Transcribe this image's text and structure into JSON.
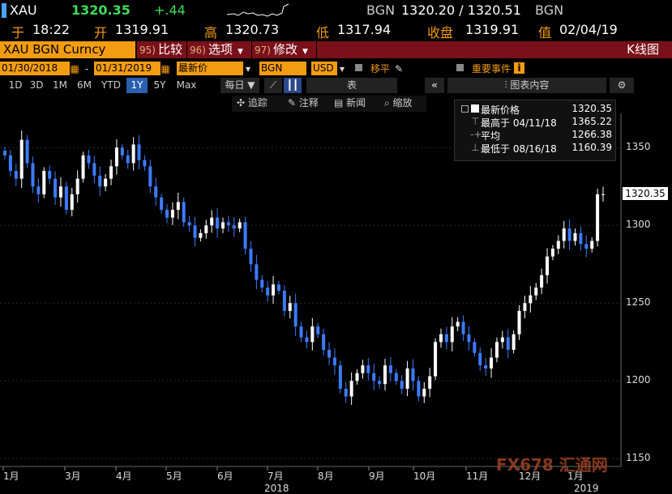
{
  "quote": {
    "ticker": "XAU",
    "last": "1320.35",
    "change": "+.44",
    "source1": "BGN",
    "bid_ask": "1320.20 / 1320.51",
    "source2": "BGN",
    "at_label": "于",
    "time": "18:22",
    "open_label": "开",
    "open": "1319.91",
    "high_label": "高",
    "high": "1320.73",
    "low_label": "低",
    "low": "1317.94",
    "close_label": "收盘",
    "close": "1319.91",
    "value_label": "值",
    "date": "02/04/19"
  },
  "toolbar": {
    "security": "XAU BGN Curncy",
    "btn_compare_num": "95)",
    "btn_compare": "比较",
    "btn_options_num": "96)",
    "btn_options": "选项",
    "btn_edit_num": "97)",
    "btn_edit": "修改",
    "chart_type": "K线图"
  },
  "controls": {
    "date_from": "01/30/2018",
    "date_sep": "-",
    "date_to": "01/31/2019",
    "field": "最新价",
    "source": "BGN",
    "currency": "USD",
    "shift_label": "移平",
    "events_label": "重要事件"
  },
  "periods": [
    "1D",
    "3D",
    "1M",
    "6M",
    "YTD",
    "1Y",
    "5Y",
    "Max"
  ],
  "active_period": "1Y",
  "frequency": "每日",
  "table_label": "表",
  "chart_content_label": "图表内容",
  "tools": {
    "track": "追踪",
    "annotate": "注释",
    "news": "新闻",
    "zoom": "缩放"
  },
  "legend": {
    "last_label": "最新价格",
    "last_value": "1320.35",
    "high_label": "最高于 04/11/18",
    "high_value": "1365.22",
    "avg_label": "平均",
    "avg_value": "1266.38",
    "low_label": "最低于 08/16/18",
    "low_value": "1160.39"
  },
  "last_price_tag": "1320.35",
  "watermark": "FX678 汇通网",
  "chart_data": {
    "type": "candlestick",
    "ylim": [
      1145,
      1372
    ],
    "y_ticks": [
      "1350",
      "1300",
      "1250",
      "1200",
      "1150"
    ],
    "x_ticks": [
      "1月",
      "3月",
      "4月",
      "5月",
      "6月",
      "7月",
      "8月",
      "9月",
      "10月",
      "11月",
      "12月",
      "1月"
    ],
    "year_labels": [
      "2018",
      "2019"
    ],
    "closes": [
      1345,
      1335,
      1330,
      1355,
      1340,
      1325,
      1320,
      1335,
      1330,
      1318,
      1325,
      1310,
      1320,
      1330,
      1345,
      1340,
      1332,
      1325,
      1330,
      1338,
      1350,
      1345,
      1340,
      1352,
      1342,
      1338,
      1325,
      1318,
      1310,
      1305,
      1310,
      1315,
      1302,
      1300,
      1292,
      1295,
      1300,
      1305,
      1298,
      1302,
      1300,
      1298,
      1302,
      1285,
      1275,
      1265,
      1260,
      1255,
      1262,
      1258,
      1245,
      1250,
      1235,
      1228,
      1225,
      1235,
      1230,
      1220,
      1215,
      1210,
      1195,
      1190,
      1200,
      1205,
      1210,
      1205,
      1200,
      1198,
      1210,
      1205,
      1200,
      1195,
      1208,
      1200,
      1190,
      1195,
      1203,
      1225,
      1230,
      1225,
      1235,
      1238,
      1230,
      1225,
      1218,
      1210,
      1208,
      1215,
      1225,
      1228,
      1220,
      1230,
      1245,
      1250,
      1255,
      1260,
      1268,
      1280,
      1285,
      1290,
      1298,
      1290,
      1295,
      1288,
      1285,
      1290,
      1320,
      1320
    ]
  }
}
